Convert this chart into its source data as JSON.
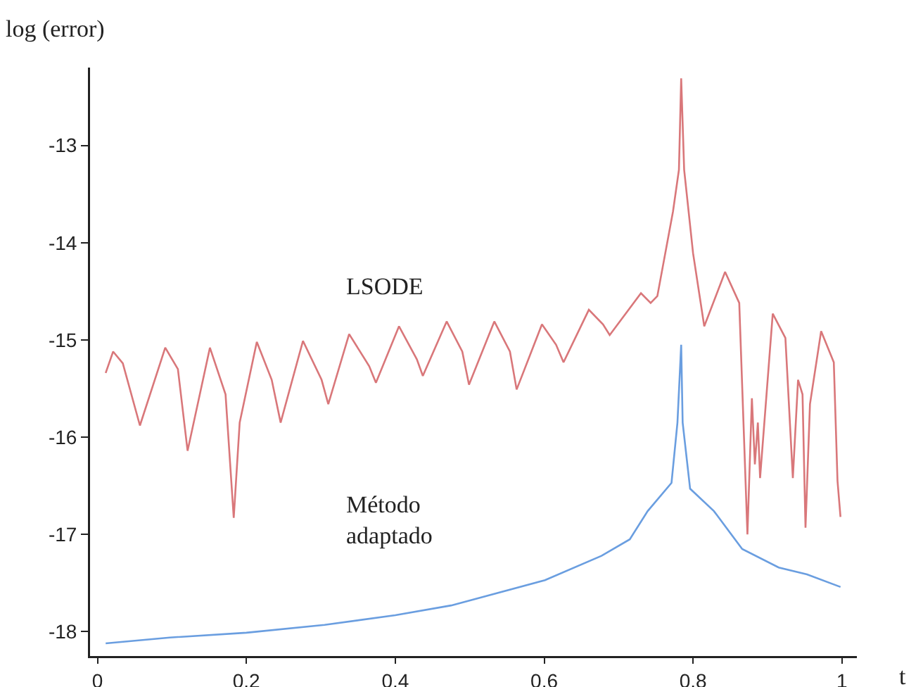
{
  "chart_data": {
    "type": "line",
    "xlabel": "t",
    "ylabel": "log (error)",
    "xlim": [
      -0.01,
      1.02
    ],
    "ylim": [
      -18.25,
      -12.2
    ],
    "xticks": [
      0,
      0.2,
      0.4,
      0.6,
      0.8,
      1
    ],
    "yticks": [
      -18,
      -17,
      -16,
      -15,
      -14,
      -13
    ],
    "grid": false,
    "legend": false,
    "marker": "none",
    "line_style": "solid",
    "series": [
      {
        "name": "LSODE",
        "color": "#d9777a",
        "x": [
          0.011,
          0.021,
          0.034,
          0.057,
          0.091,
          0.108,
          0.121,
          0.151,
          0.172,
          0.183,
          0.191,
          0.214,
          0.234,
          0.246,
          0.276,
          0.301,
          0.31,
          0.338,
          0.365,
          0.374,
          0.405,
          0.429,
          0.437,
          0.469,
          0.49,
          0.499,
          0.533,
          0.554,
          0.563,
          0.597,
          0.616,
          0.626,
          0.66,
          0.679,
          0.688,
          0.73,
          0.743,
          0.752,
          0.773,
          0.781,
          0.784,
          0.788,
          0.8,
          0.815,
          0.843,
          0.862,
          0.873,
          0.879,
          0.883,
          0.887,
          0.89,
          0.907,
          0.924,
          0.934,
          0.941,
          0.947,
          0.951,
          0.957,
          0.972,
          0.989,
          0.994,
          0.998
        ],
        "values": [
          -15.34,
          -15.12,
          -15.24,
          -15.88,
          -15.08,
          -15.3,
          -16.14,
          -15.08,
          -15.56,
          -16.83,
          -15.85,
          -15.02,
          -15.41,
          -15.85,
          -15.01,
          -15.41,
          -15.66,
          -14.94,
          -15.27,
          -15.44,
          -14.86,
          -15.2,
          -15.37,
          -14.81,
          -15.12,
          -15.46,
          -14.81,
          -15.12,
          -15.51,
          -14.84,
          -15.05,
          -15.23,
          -14.69,
          -14.84,
          -14.95,
          -14.52,
          -14.62,
          -14.55,
          -13.68,
          -13.25,
          -12.31,
          -13.25,
          -14.11,
          -14.86,
          -14.3,
          -14.62,
          -17.0,
          -15.6,
          -16.28,
          -15.85,
          -16.42,
          -14.73,
          -14.98,
          -16.42,
          -15.41,
          -15.56,
          -16.93,
          -15.66,
          -14.91,
          -15.23,
          -16.45,
          -16.82
        ]
      },
      {
        "name": "Método adaptado",
        "color": "#6a9ee0",
        "x": [
          0.011,
          0.097,
          0.2,
          0.305,
          0.4,
          0.475,
          0.601,
          0.677,
          0.715,
          0.739,
          0.771,
          0.779,
          0.784,
          0.786,
          0.796,
          0.828,
          0.866,
          0.915,
          0.953,
          0.998
        ],
        "values": [
          -18.12,
          -18.06,
          -18.01,
          -17.93,
          -17.83,
          -17.73,
          -17.47,
          -17.22,
          -17.05,
          -16.76,
          -16.47,
          -15.85,
          -15.05,
          -15.85,
          -16.53,
          -16.76,
          -17.15,
          -17.34,
          -17.41,
          -17.54
        ]
      }
    ]
  }
}
